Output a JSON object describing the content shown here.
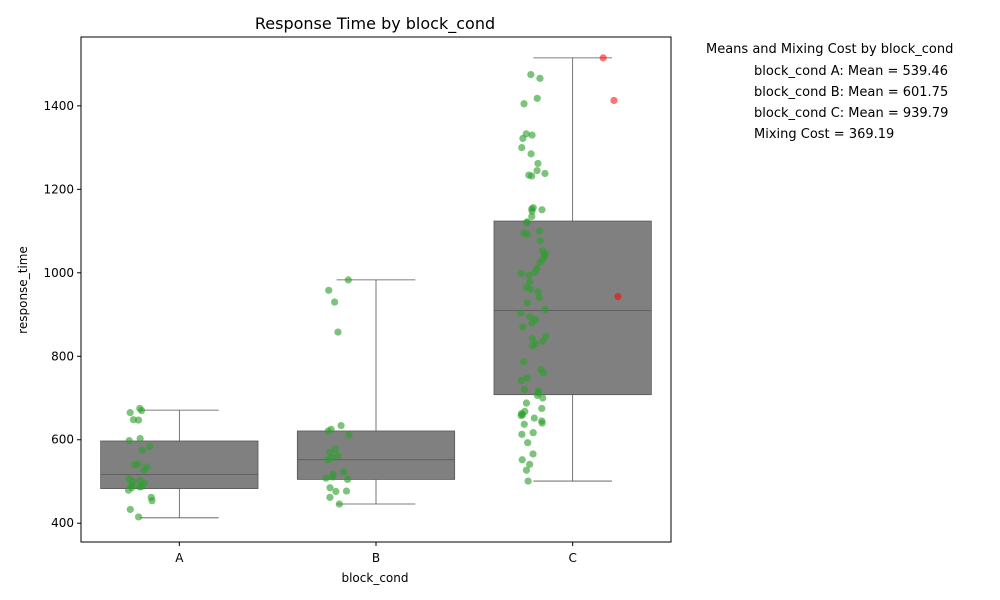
{
  "chart_data": {
    "type": "box",
    "title": "Response Time by block_cond",
    "xlabel": "block_cond",
    "ylabel": "response_time",
    "categories": [
      "A",
      "B",
      "C"
    ],
    "ylim": [
      355,
      1565
    ],
    "yticks": [
      400,
      600,
      800,
      1000,
      1200,
      1400
    ],
    "box_color": "#808080",
    "point_color": "#2ca02c",
    "outlier_color": "#ff0000",
    "boxes": [
      {
        "category": "A",
        "whisker_low": 413,
        "q1": 483,
        "median": 517,
        "q3": 597,
        "whisker_high": 671
      },
      {
        "category": "B",
        "whisker_low": 446,
        "q1": 505,
        "median": 552,
        "q3": 621,
        "whisker_high": 983
      },
      {
        "category": "C",
        "whisker_low": 501,
        "q1": 708,
        "median": 910,
        "q3": 1124,
        "whisker_high": 1515
      }
    ],
    "points": [
      {
        "category": "A",
        "values": [
          675,
          670,
          665,
          648,
          647,
          603,
          598,
          584,
          575,
          542,
          540,
          535,
          527,
          506,
          503,
          500,
          496,
          490,
          488,
          487,
          485,
          479,
          462,
          454,
          433,
          415
        ]
      },
      {
        "category": "B",
        "values": [
          983,
          958,
          930,
          858,
          634,
          625,
          621,
          612,
          578,
          570,
          562,
          557,
          552,
          523,
          517,
          511,
          508,
          505,
          485,
          477,
          476,
          462,
          446
        ]
      },
      {
        "category": "C",
        "values": [
          1475,
          1466,
          1418,
          1405,
          1333,
          1330,
          1322,
          1300,
          1285,
          1262,
          1245,
          1238,
          1234,
          1232,
          1156,
          1153,
          1151,
          1148,
          1135,
          1122,
          1120,
          1100,
          1095,
          1092,
          1077,
          1053,
          1046,
          1040,
          1031,
          1025,
          1010,
          1001,
          998,
          994,
          978,
          965,
          960,
          955,
          940,
          928,
          912,
          904,
          895,
          888,
          880,
          870,
          848,
          842,
          836,
          830,
          825,
          787,
          768,
          760,
          748,
          742,
          720,
          717,
          712,
          706,
          700,
          688,
          675,
          668,
          663,
          660,
          658,
          652,
          645,
          640,
          637,
          617,
          613,
          593,
          566,
          552,
          541,
          527,
          501
        ]
      }
    ],
    "outliers": [
      {
        "category": "C",
        "values": [
          1515,
          1413,
          943
        ]
      }
    ],
    "legend": {
      "title": "Means and Mixing Cost by block_cond",
      "entries": [
        "block_cond A: Mean = 539.46",
        "block_cond B: Mean = 601.75",
        "block_cond C: Mean = 939.79",
        "Mixing Cost = 369.19"
      ],
      "placement": "right"
    }
  }
}
